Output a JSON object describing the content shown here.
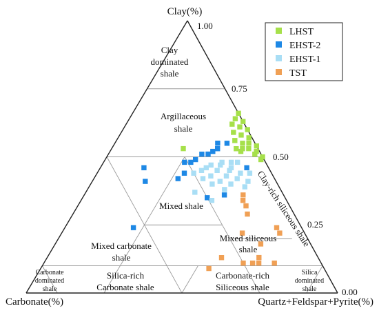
{
  "chart_data": {
    "type": "ternary",
    "axes": {
      "top": "Clay(%)",
      "left": "Carbonate(%)",
      "right": "Quartz+Feldspar+Pyrite(%)"
    },
    "ticks": [
      "1.00",
      "0.75",
      "0.50",
      "0.25",
      "0.00"
    ],
    "regions": {
      "clay_dominated": [
        "Clay",
        "dominated",
        "shale"
      ],
      "argillaceous": [
        "Argillaceous",
        "shale"
      ],
      "mixed": [
        "Mixed shale"
      ],
      "clay_rich_siliceous": "Clay-rich siliceous shale",
      "mixed_carbonate": [
        "Mixed carbonate",
        "shale"
      ],
      "mixed_siliceous": [
        "Mixed siliceous",
        "shale"
      ],
      "carbonate_dominated": [
        "Carbonate",
        "dominated",
        "shale"
      ],
      "silica_rich_carbonate": [
        "Silica-rich",
        "Carbonate shale"
      ],
      "carbonate_rich_siliceous": [
        "Carbonate-rich",
        "Siliceous shale"
      ],
      "silica_dominated": [
        "Silica",
        "dominated",
        "shale"
      ]
    },
    "legend_position": "top-right",
    "series": [
      {
        "name": "LHST",
        "color": "#a6e04a",
        "points": [
          [
            0.66,
            0.0
          ],
          [
            0.64,
            0.02
          ],
          [
            0.63,
            0.0
          ],
          [
            0.62,
            0.04
          ],
          [
            0.61,
            0.02
          ],
          [
            0.6,
            0.0
          ],
          [
            0.59,
            0.05
          ],
          [
            0.58,
            0.03
          ],
          [
            0.57,
            0.01
          ],
          [
            0.56,
            0.06
          ],
          [
            0.55,
            0.04
          ],
          [
            0.55,
            0.02
          ],
          [
            0.54,
            0.0
          ],
          [
            0.53,
            0.07
          ],
          [
            0.53,
            0.05
          ],
          [
            0.53,
            0.03
          ],
          [
            0.52,
            0.01
          ],
          [
            0.52,
            0.06
          ],
          [
            0.51,
            0.02
          ],
          [
            0.5,
            0.0
          ],
          [
            0.49,
            0.01
          ],
          [
            0.53,
            0.24
          ]
        ]
      },
      {
        "name": "EHST-2",
        "color": "#1e88e5",
        "points": [
          [
            0.55,
            0.12
          ],
          [
            0.55,
            0.09
          ],
          [
            0.53,
            0.13
          ],
          [
            0.52,
            0.15
          ],
          [
            0.51,
            0.17
          ],
          [
            0.51,
            0.19
          ],
          [
            0.49,
            0.22
          ],
          [
            0.48,
            0.24
          ],
          [
            0.48,
            0.26
          ],
          [
            0.44,
            0.28
          ],
          [
            0.46,
            0.4
          ],
          [
            0.41,
            0.42
          ],
          [
            0.42,
            0.31
          ],
          [
            0.35,
            0.25
          ],
          [
            0.36,
            0.19
          ],
          [
            0.24,
            0.54
          ],
          [
            0.46,
            0.07
          ]
        ]
      },
      {
        "name": "EHST-1",
        "color": "#a9def5",
        "points": [
          [
            0.48,
            0.14
          ],
          [
            0.48,
            0.11
          ],
          [
            0.48,
            0.09
          ],
          [
            0.47,
            0.18
          ],
          [
            0.47,
            0.15
          ],
          [
            0.46,
            0.2
          ],
          [
            0.46,
            0.12
          ],
          [
            0.45,
            0.22
          ],
          [
            0.45,
            0.17
          ],
          [
            0.45,
            0.13
          ],
          [
            0.44,
            0.25
          ],
          [
            0.44,
            0.1
          ],
          [
            0.44,
            0.07
          ],
          [
            0.43,
            0.2
          ],
          [
            0.43,
            0.15
          ],
          [
            0.42,
            0.12
          ],
          [
            0.42,
            0.23
          ],
          [
            0.41,
            0.18
          ],
          [
            0.41,
            0.09
          ],
          [
            0.4,
            0.21
          ],
          [
            0.4,
            0.15
          ],
          [
            0.39,
            0.11
          ],
          [
            0.38,
            0.18
          ],
          [
            0.37,
            0.28
          ],
          [
            0.34,
            0.24
          ]
        ]
      },
      {
        "name": "TST",
        "color": "#f0a055",
        "points": [
          [
            0.36,
            0.13
          ],
          [
            0.34,
            0.14
          ],
          [
            0.32,
            0.14
          ],
          [
            0.29,
            0.15
          ],
          [
            0.24,
            0.08
          ],
          [
            0.22,
            0.2
          ],
          [
            0.22,
            0.08
          ],
          [
            0.18,
            0.16
          ],
          [
            0.13,
            0.31
          ],
          [
            0.13,
            0.19
          ],
          [
            0.11,
            0.25
          ],
          [
            0.11,
            0.22
          ],
          [
            0.11,
            0.2
          ],
          [
            0.11,
            0.15
          ],
          [
            0.09,
            0.37
          ]
        ]
      }
    ]
  }
}
